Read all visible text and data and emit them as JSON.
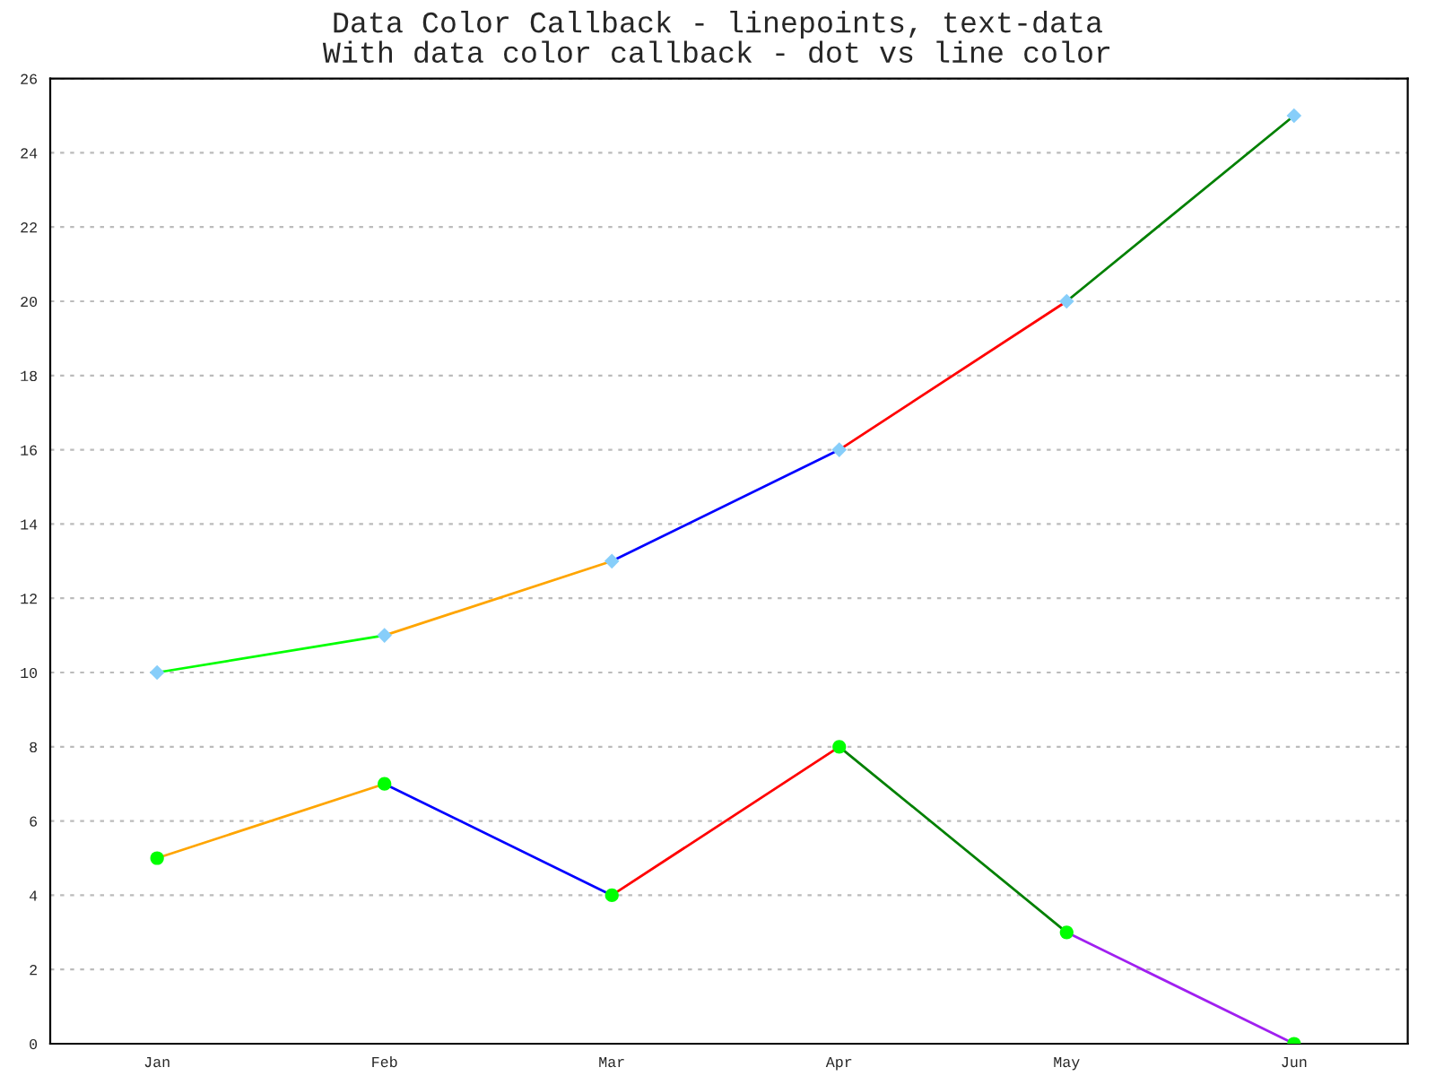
{
  "chart_data": {
    "type": "line",
    "title": "Data Color Callback - linepoints, text-data\nWith data color callback - dot vs line color",
    "categories": [
      "Jan",
      "Feb",
      "Mar",
      "Apr",
      "May",
      "Jun"
    ],
    "series": [
      {
        "values": [
          10,
          11,
          null,
          null,
          null,
          null
        ],
        "color": "#00ff00"
      },
      {
        "values": [
          null,
          11,
          13,
          null,
          null,
          null
        ],
        "color": "#ffa500"
      },
      {
        "values": [
          null,
          null,
          13,
          16,
          null,
          null
        ],
        "color": "#0000ff"
      },
      {
        "values": [
          null,
          null,
          null,
          16,
          20,
          null
        ],
        "color": "#ff0000"
      },
      {
        "values": [
          null,
          null,
          null,
          null,
          20,
          25
        ],
        "color": "#008000"
      },
      {
        "values": [
          5,
          7,
          null,
          null,
          null,
          null
        ],
        "color": "#ffa500"
      },
      {
        "values": [
          null,
          7,
          4,
          null,
          null,
          null
        ],
        "color": "#0000ff"
      },
      {
        "values": [
          null,
          null,
          4,
          8,
          null,
          null
        ],
        "color": "#ff0000"
      },
      {
        "values": [
          null,
          null,
          null,
          8,
          3,
          null
        ],
        "color": "#008000"
      },
      {
        "values": [
          null,
          null,
          null,
          null,
          3,
          0
        ],
        "color": "#a020f0"
      },
      {
        "type": "scatter",
        "values": [
          10,
          11,
          13,
          16,
          20,
          25
        ],
        "color": "#87cefa",
        "marker": "diamond"
      },
      {
        "type": "scatter",
        "values": [
          5,
          7,
          4,
          8,
          3,
          0
        ],
        "color": "#00ff00",
        "marker": "circle"
      }
    ],
    "ylim": [
      0,
      26
    ],
    "yticks": [
      0,
      2,
      4,
      6,
      8,
      10,
      12,
      14,
      16,
      18,
      20,
      22,
      24,
      26
    ],
    "grid": "y",
    "line_style": "solid",
    "marker": "none"
  }
}
